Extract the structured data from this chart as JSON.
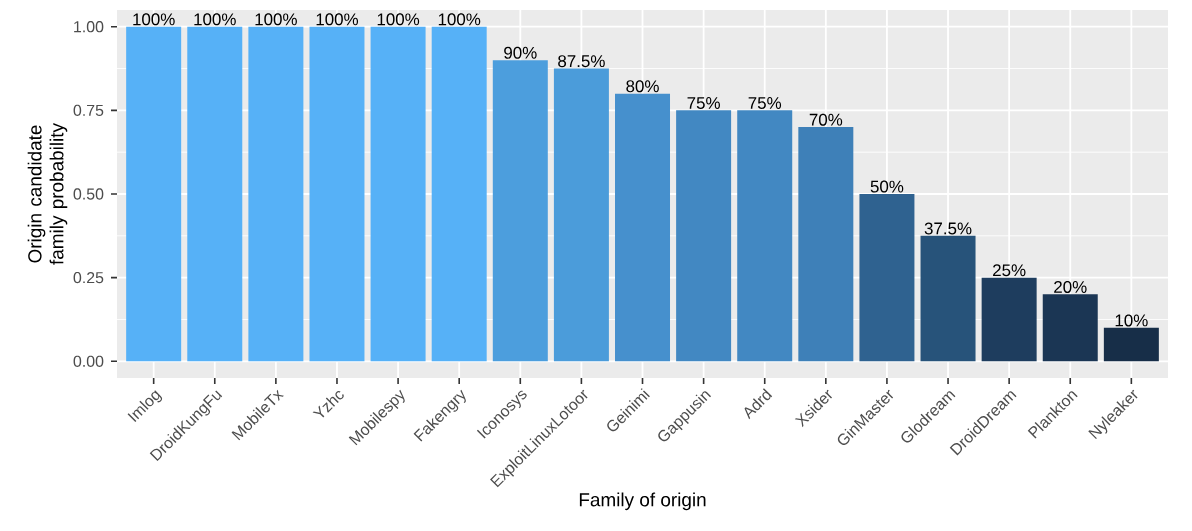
{
  "chart_data": {
    "type": "bar",
    "xlabel": "Family of origin",
    "ylabel": "Origin candidate family probability",
    "categories": [
      "Imlog",
      "DroidKungFu",
      "MobileTx",
      "Yzhc",
      "Mobilespy",
      "Fakengry",
      "Iconosys",
      "ExploitLinuxLotoor",
      "Geinimi",
      "Gappusin",
      "Adrd",
      "Xsider",
      "GinMaster",
      "Glodream",
      "DroidDream",
      "Plankton",
      "Nyleaker"
    ],
    "values": [
      1,
      1,
      1,
      1,
      1,
      1,
      0.9,
      0.875,
      0.8,
      0.75,
      0.75,
      0.7,
      0.5,
      0.375,
      0.25,
      0.2,
      0.1
    ],
    "colors": [
      "#56B1F7",
      "#56B1F7",
      "#56B1F7",
      "#56B1F7",
      "#56B1F7",
      "#56B1F7",
      "#4C9EDD",
      "#4B9CDA",
      "#4690CD",
      "#4288C2",
      "#4288C2",
      "#3E80B8",
      "#2F6290",
      "#27537A",
      "#1E3D5E",
      "#1B3654",
      "#172E48"
    ],
    "value_labels": [
      "100%",
      "100%",
      "100%",
      "100%",
      "100%",
      "100%",
      "90%",
      "87.5%",
      "80%",
      "75%",
      "75%",
      "70%",
      "50%",
      "37.5%",
      "25%",
      "20%",
      "10%"
    ],
    "ylim": [
      -0.05,
      1.05
    ],
    "yticks": [
      {
        "value": 0,
        "label": "0.00"
      },
      {
        "value": 0.25,
        "label": "0.25"
      },
      {
        "value": 0.5,
        "label": "0.50"
      },
      {
        "value": 0.75,
        "label": "0.75"
      },
      {
        "value": 1,
        "label": "1.00"
      }
    ],
    "grid": true
  }
}
